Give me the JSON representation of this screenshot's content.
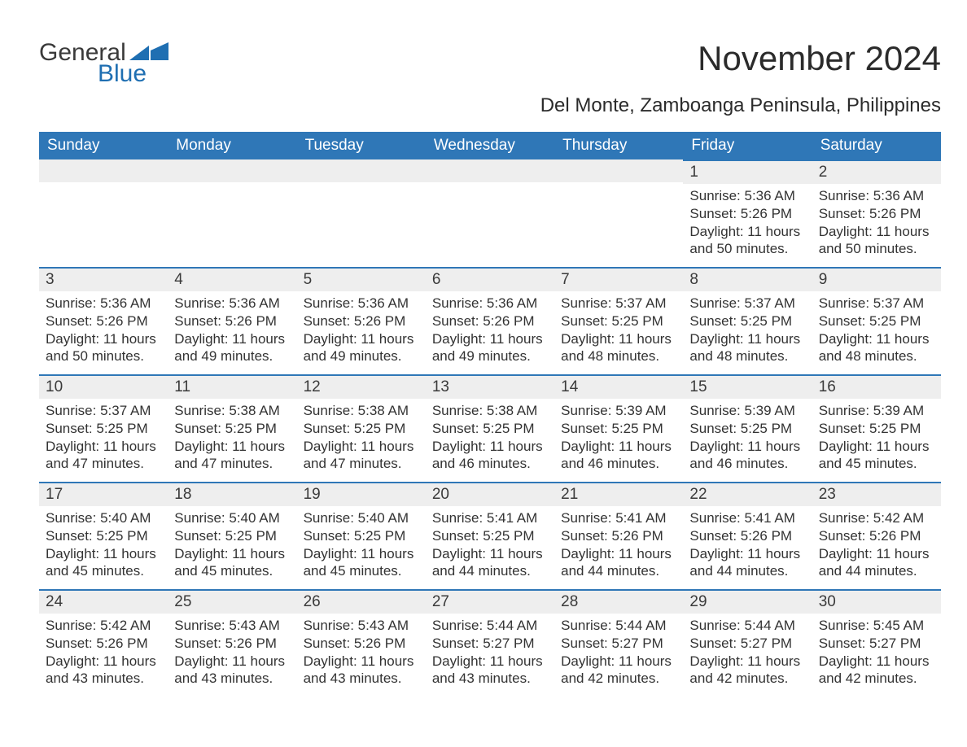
{
  "logo": {
    "text1": "General",
    "text2": "Blue",
    "mark_color": "#1f6fb2"
  },
  "title": "November 2024",
  "subtitle": "Del Monte, Zamboanga Peninsula, Philippines",
  "colors": {
    "header_bg": "#2f77b7",
    "header_text": "#ffffff",
    "row_accent": "#2f77b7",
    "daynum_bg": "#eeeeee",
    "body_text": "#333333",
    "page_bg": "#ffffff"
  },
  "weekdays": [
    "Sunday",
    "Monday",
    "Tuesday",
    "Wednesday",
    "Thursday",
    "Friday",
    "Saturday"
  ],
  "weeks": [
    [
      null,
      null,
      null,
      null,
      null,
      {
        "n": "1",
        "sr": "Sunrise: 5:36 AM",
        "ss": "Sunset: 5:26 PM",
        "dl": "Daylight: 11 hours and 50 minutes."
      },
      {
        "n": "2",
        "sr": "Sunrise: 5:36 AM",
        "ss": "Sunset: 5:26 PM",
        "dl": "Daylight: 11 hours and 50 minutes."
      }
    ],
    [
      {
        "n": "3",
        "sr": "Sunrise: 5:36 AM",
        "ss": "Sunset: 5:26 PM",
        "dl": "Daylight: 11 hours and 50 minutes."
      },
      {
        "n": "4",
        "sr": "Sunrise: 5:36 AM",
        "ss": "Sunset: 5:26 PM",
        "dl": "Daylight: 11 hours and 49 minutes."
      },
      {
        "n": "5",
        "sr": "Sunrise: 5:36 AM",
        "ss": "Sunset: 5:26 PM",
        "dl": "Daylight: 11 hours and 49 minutes."
      },
      {
        "n": "6",
        "sr": "Sunrise: 5:36 AM",
        "ss": "Sunset: 5:26 PM",
        "dl": "Daylight: 11 hours and 49 minutes."
      },
      {
        "n": "7",
        "sr": "Sunrise: 5:37 AM",
        "ss": "Sunset: 5:25 PM",
        "dl": "Daylight: 11 hours and 48 minutes."
      },
      {
        "n": "8",
        "sr": "Sunrise: 5:37 AM",
        "ss": "Sunset: 5:25 PM",
        "dl": "Daylight: 11 hours and 48 minutes."
      },
      {
        "n": "9",
        "sr": "Sunrise: 5:37 AM",
        "ss": "Sunset: 5:25 PM",
        "dl": "Daylight: 11 hours and 48 minutes."
      }
    ],
    [
      {
        "n": "10",
        "sr": "Sunrise: 5:37 AM",
        "ss": "Sunset: 5:25 PM",
        "dl": "Daylight: 11 hours and 47 minutes."
      },
      {
        "n": "11",
        "sr": "Sunrise: 5:38 AM",
        "ss": "Sunset: 5:25 PM",
        "dl": "Daylight: 11 hours and 47 minutes."
      },
      {
        "n": "12",
        "sr": "Sunrise: 5:38 AM",
        "ss": "Sunset: 5:25 PM",
        "dl": "Daylight: 11 hours and 47 minutes."
      },
      {
        "n": "13",
        "sr": "Sunrise: 5:38 AM",
        "ss": "Sunset: 5:25 PM",
        "dl": "Daylight: 11 hours and 46 minutes."
      },
      {
        "n": "14",
        "sr": "Sunrise: 5:39 AM",
        "ss": "Sunset: 5:25 PM",
        "dl": "Daylight: 11 hours and 46 minutes."
      },
      {
        "n": "15",
        "sr": "Sunrise: 5:39 AM",
        "ss": "Sunset: 5:25 PM",
        "dl": "Daylight: 11 hours and 46 minutes."
      },
      {
        "n": "16",
        "sr": "Sunrise: 5:39 AM",
        "ss": "Sunset: 5:25 PM",
        "dl": "Daylight: 11 hours and 45 minutes."
      }
    ],
    [
      {
        "n": "17",
        "sr": "Sunrise: 5:40 AM",
        "ss": "Sunset: 5:25 PM",
        "dl": "Daylight: 11 hours and 45 minutes."
      },
      {
        "n": "18",
        "sr": "Sunrise: 5:40 AM",
        "ss": "Sunset: 5:25 PM",
        "dl": "Daylight: 11 hours and 45 minutes."
      },
      {
        "n": "19",
        "sr": "Sunrise: 5:40 AM",
        "ss": "Sunset: 5:25 PM",
        "dl": "Daylight: 11 hours and 45 minutes."
      },
      {
        "n": "20",
        "sr": "Sunrise: 5:41 AM",
        "ss": "Sunset: 5:25 PM",
        "dl": "Daylight: 11 hours and 44 minutes."
      },
      {
        "n": "21",
        "sr": "Sunrise: 5:41 AM",
        "ss": "Sunset: 5:26 PM",
        "dl": "Daylight: 11 hours and 44 minutes."
      },
      {
        "n": "22",
        "sr": "Sunrise: 5:41 AM",
        "ss": "Sunset: 5:26 PM",
        "dl": "Daylight: 11 hours and 44 minutes."
      },
      {
        "n": "23",
        "sr": "Sunrise: 5:42 AM",
        "ss": "Sunset: 5:26 PM",
        "dl": "Daylight: 11 hours and 44 minutes."
      }
    ],
    [
      {
        "n": "24",
        "sr": "Sunrise: 5:42 AM",
        "ss": "Sunset: 5:26 PM",
        "dl": "Daylight: 11 hours and 43 minutes."
      },
      {
        "n": "25",
        "sr": "Sunrise: 5:43 AM",
        "ss": "Sunset: 5:26 PM",
        "dl": "Daylight: 11 hours and 43 minutes."
      },
      {
        "n": "26",
        "sr": "Sunrise: 5:43 AM",
        "ss": "Sunset: 5:26 PM",
        "dl": "Daylight: 11 hours and 43 minutes."
      },
      {
        "n": "27",
        "sr": "Sunrise: 5:44 AM",
        "ss": "Sunset: 5:27 PM",
        "dl": "Daylight: 11 hours and 43 minutes."
      },
      {
        "n": "28",
        "sr": "Sunrise: 5:44 AM",
        "ss": "Sunset: 5:27 PM",
        "dl": "Daylight: 11 hours and 42 minutes."
      },
      {
        "n": "29",
        "sr": "Sunrise: 5:44 AM",
        "ss": "Sunset: 5:27 PM",
        "dl": "Daylight: 11 hours and 42 minutes."
      },
      {
        "n": "30",
        "sr": "Sunrise: 5:45 AM",
        "ss": "Sunset: 5:27 PM",
        "dl": "Daylight: 11 hours and 42 minutes."
      }
    ]
  ]
}
